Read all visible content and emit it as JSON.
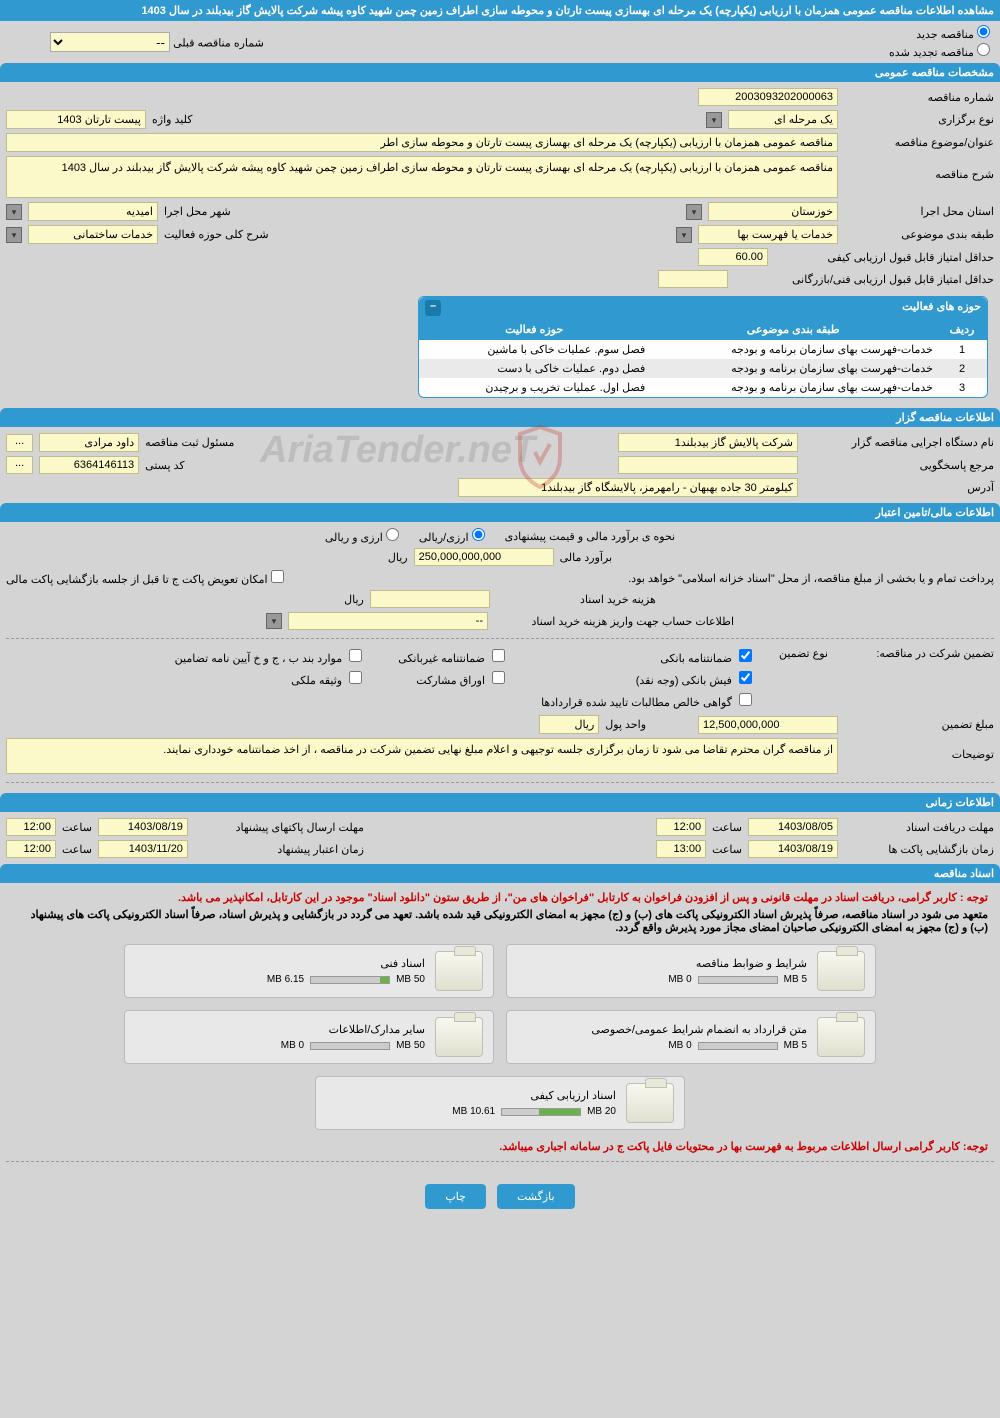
{
  "pageTitle": "مشاهده اطلاعات مناقصه عمومی همزمان با ارزیابی (یکپارچه) یک مرحله ای بهسازی پیست تارتان و محوطه سازی اطراف زمین چمن شهید کاوه پیشه شرکت پالایش گاز بیدبلند در سال 1403",
  "radio": {
    "new": "مناقصه جدید",
    "renewed": "مناقصه تجدید شده"
  },
  "prevLabel": "شماره مناقصه قبلی",
  "prevValue": "--",
  "sections": {
    "general": "مشخصات مناقصه عمومی",
    "activity": "حوزه های فعالیت",
    "owner": "اطلاعات مناقصه گزار",
    "finance": "اطلاعات مالی/تامین اعتبار",
    "time": "اطلاعات زمانی",
    "docs": "اسناد مناقصه"
  },
  "general": {
    "numLabel": "شماره مناقصه",
    "num": "2003093202000063",
    "typeLabel": "نوع برگزاری",
    "type": "یک مرحله ای",
    "keywordLabel": "کلید واژه",
    "keyword": "پیست تارتان 1403",
    "subjectLabel": "عنوان/موضوع مناقصه",
    "subject": "مناقصه عمومی همزمان با ارزیابی (یکپارچه) یک مرحله ای بهسازی پیست تارتان و محوطه سازی اطر",
    "descLabel": "شرح مناقصه",
    "desc": "مناقصه عمومی همزمان با ارزیابی (یکپارچه) یک مرحله ای بهسازی پیست تارتان و محوطه سازی اطراف زمین چمن شهید کاوه پیشه شرکت پالایش گاز بیدبلند در سال 1403",
    "provLabel": "استان محل اجرا",
    "prov": "خوزستان",
    "cityLabel": "شهر محل اجرا",
    "city": "امیدیه",
    "catLabel": "طبقه بندی موضوعی",
    "cat": "خدمات یا فهرست بها",
    "actLabel": "شرح کلی حوزه فعالیت",
    "act": "خدمات ساختمانی",
    "minQualLabel": "حداقل امتیاز قابل قبول ارزیابی کیفی",
    "minQual": "60.00",
    "minTechLabel": "حداقل امتیاز قابل قبول ارزیابی فنی/بازرگانی",
    "minTech": ""
  },
  "activityTable": {
    "cols": {
      "row": "ردیف",
      "cat": "طبقه بندی موضوعی",
      "field": "حوزه فعالیت"
    },
    "rows": [
      {
        "n": "1",
        "cat": "خدمات-فهرست بهای سازمان برنامه و بودجه",
        "field": "فصل سوم. عملیات خاکی با ماشین"
      },
      {
        "n": "2",
        "cat": "خدمات-فهرست بهای سازمان برنامه و بودجه",
        "field": "فصل دوم. عملیات خاکی با دست"
      },
      {
        "n": "3",
        "cat": "خدمات-فهرست بهای سازمان برنامه و بودجه",
        "field": "فصل اول. عملیات تخریب و برچیدن"
      }
    ]
  },
  "owner": {
    "orgLabel": "نام دستگاه اجرایی مناقصه گزار",
    "org": "شرکت پالایش گاز بیدبلند1",
    "respLabel": "مسئول ثبت مناقصه",
    "resp": "داود مرادی",
    "refLabel": "مرجع پاسخگویی",
    "ref": "",
    "zipLabel": "کد پستی",
    "zip": "6364146113",
    "addrLabel": "آدرس",
    "addr": "کیلومتر 30 جاده بهبهان - رامهرمز، پالایشگاه گاز بیدبلند1"
  },
  "finance": {
    "methodLabel": "نحوه ی برآورد مالی و قیمت پیشنهادی",
    "opt1": "ارزی/ریالی",
    "opt2": "ارزی و ریالی",
    "estLabel": "برآورد مالی",
    "est": "250,000,000,000",
    "rial": "ریال",
    "payNote": "پرداخت تمام و یا بخشی از مبلغ مناقصه، از محل \"اسناد خزانه اسلامی\" خواهد بود.",
    "swapNote": "امکان تعویض پاکت ج تا قبل از جلسه بازگشایی پاکت مالی",
    "buyLabel": "هزینه خرید اسناد",
    "buy": "",
    "accLabel": "اطلاعات حساب جهت واریز هزینه خرید اسناد",
    "acc": "--",
    "guaranteeLabel": "تضمین شرکت در مناقصه:",
    "guaranteeType": "نوع تضمین",
    "g1": "ضمانتنامه بانکی",
    "g2": "ضمانتنامه غیربانکی",
    "g3": "موارد بند ب ، ج و خ آیین نامه تضامین",
    "g4": "فیش بانکی (وجه نقد)",
    "g5": "اوراق مشارکت",
    "g6": "وثیقه ملکی",
    "g7": "گواهی خالص مطالبات تایید شده قراردادها",
    "gAmtLabel": "مبلغ تضمین",
    "gAmt": "12,500,000,000",
    "gUnitLabel": "واحد پول",
    "noteLabel": "توضیحات",
    "note": "از مناقصه گران محترم تقاضا می شود تا زمان برگزاری جلسه توجیهی و اعلام مبلغ نهایی تضمین شرکت در مناقصه ، از اخذ ضمانتنامه خودداری نمایند."
  },
  "time": {
    "recvLabel": "مهلت دریافت اسناد",
    "recvDate": "1403/08/05",
    "recvHourLabel": "ساعت",
    "recvHour": "12:00",
    "sendLabel": "مهلت ارسال پاکتهای پیشنهاد",
    "sendDate": "1403/08/19",
    "sendHour": "12:00",
    "openLabel": "زمان بازگشایی پاکت ها",
    "openDate": "1403/08/19",
    "openHour": "13:00",
    "validLabel": "زمان اعتبار پیشنهاد",
    "validDate": "1403/11/20",
    "validHour": "12:00"
  },
  "docs": {
    "notice1": "توجه : کاربر گرامی، دریافت اسناد در مهلت قانونی و پس از افزودن فراخوان به کارتابل \"فراخوان های من\"، از طریق ستون \"دانلود اسناد\" موجود در این کارتابل، امکانپذیر می باشد.",
    "notice2": "متعهد می شود در اسناد مناقصه، صرفاً پذیرش اسناد الکترونیکی پاکت های (ب) و (ج) مجهز به امضای الکترونیکی قید شده باشد. تعهد می گردد در بازگشایی و پذیرش اسناد، صرفاً اسناد الکترونیکی پاکت های پیشنهاد (ب) و (ج) مجهز به امضای الکترونیکی صاحبان امضای مجاز مورد پذیرش واقع گردد.",
    "notice3": "توجه: کاربر گرامی ارسال اطلاعات مربوط به فهرست بها در محتویات فایل پاکت ج در سامانه اجباری میباشد.",
    "cards": [
      {
        "title": "شرایط و ضوابط مناقصه",
        "used": "0 MB",
        "total": "5 MB",
        "pct": 0
      },
      {
        "title": "اسناد فنی",
        "used": "6.15 MB",
        "total": "50 MB",
        "pct": 12
      },
      {
        "title": "متن قرارداد به انضمام شرایط عمومی/خصوصی",
        "used": "0 MB",
        "total": "5 MB",
        "pct": 0
      },
      {
        "title": "سایر مدارک/اطلاعات",
        "used": "0 MB",
        "total": "50 MB",
        "pct": 0
      },
      {
        "title": "اسناد ارزیابی کیفی",
        "used": "10.61 MB",
        "total": "20 MB",
        "pct": 53
      }
    ]
  },
  "buttons": {
    "back": "بازگشت",
    "print": "چاپ"
  },
  "colors": {
    "header": "#3099d0",
    "field": "#fbf8c9",
    "fieldBorder": "#c0bd8a",
    "bg": "#d4d4d4"
  }
}
